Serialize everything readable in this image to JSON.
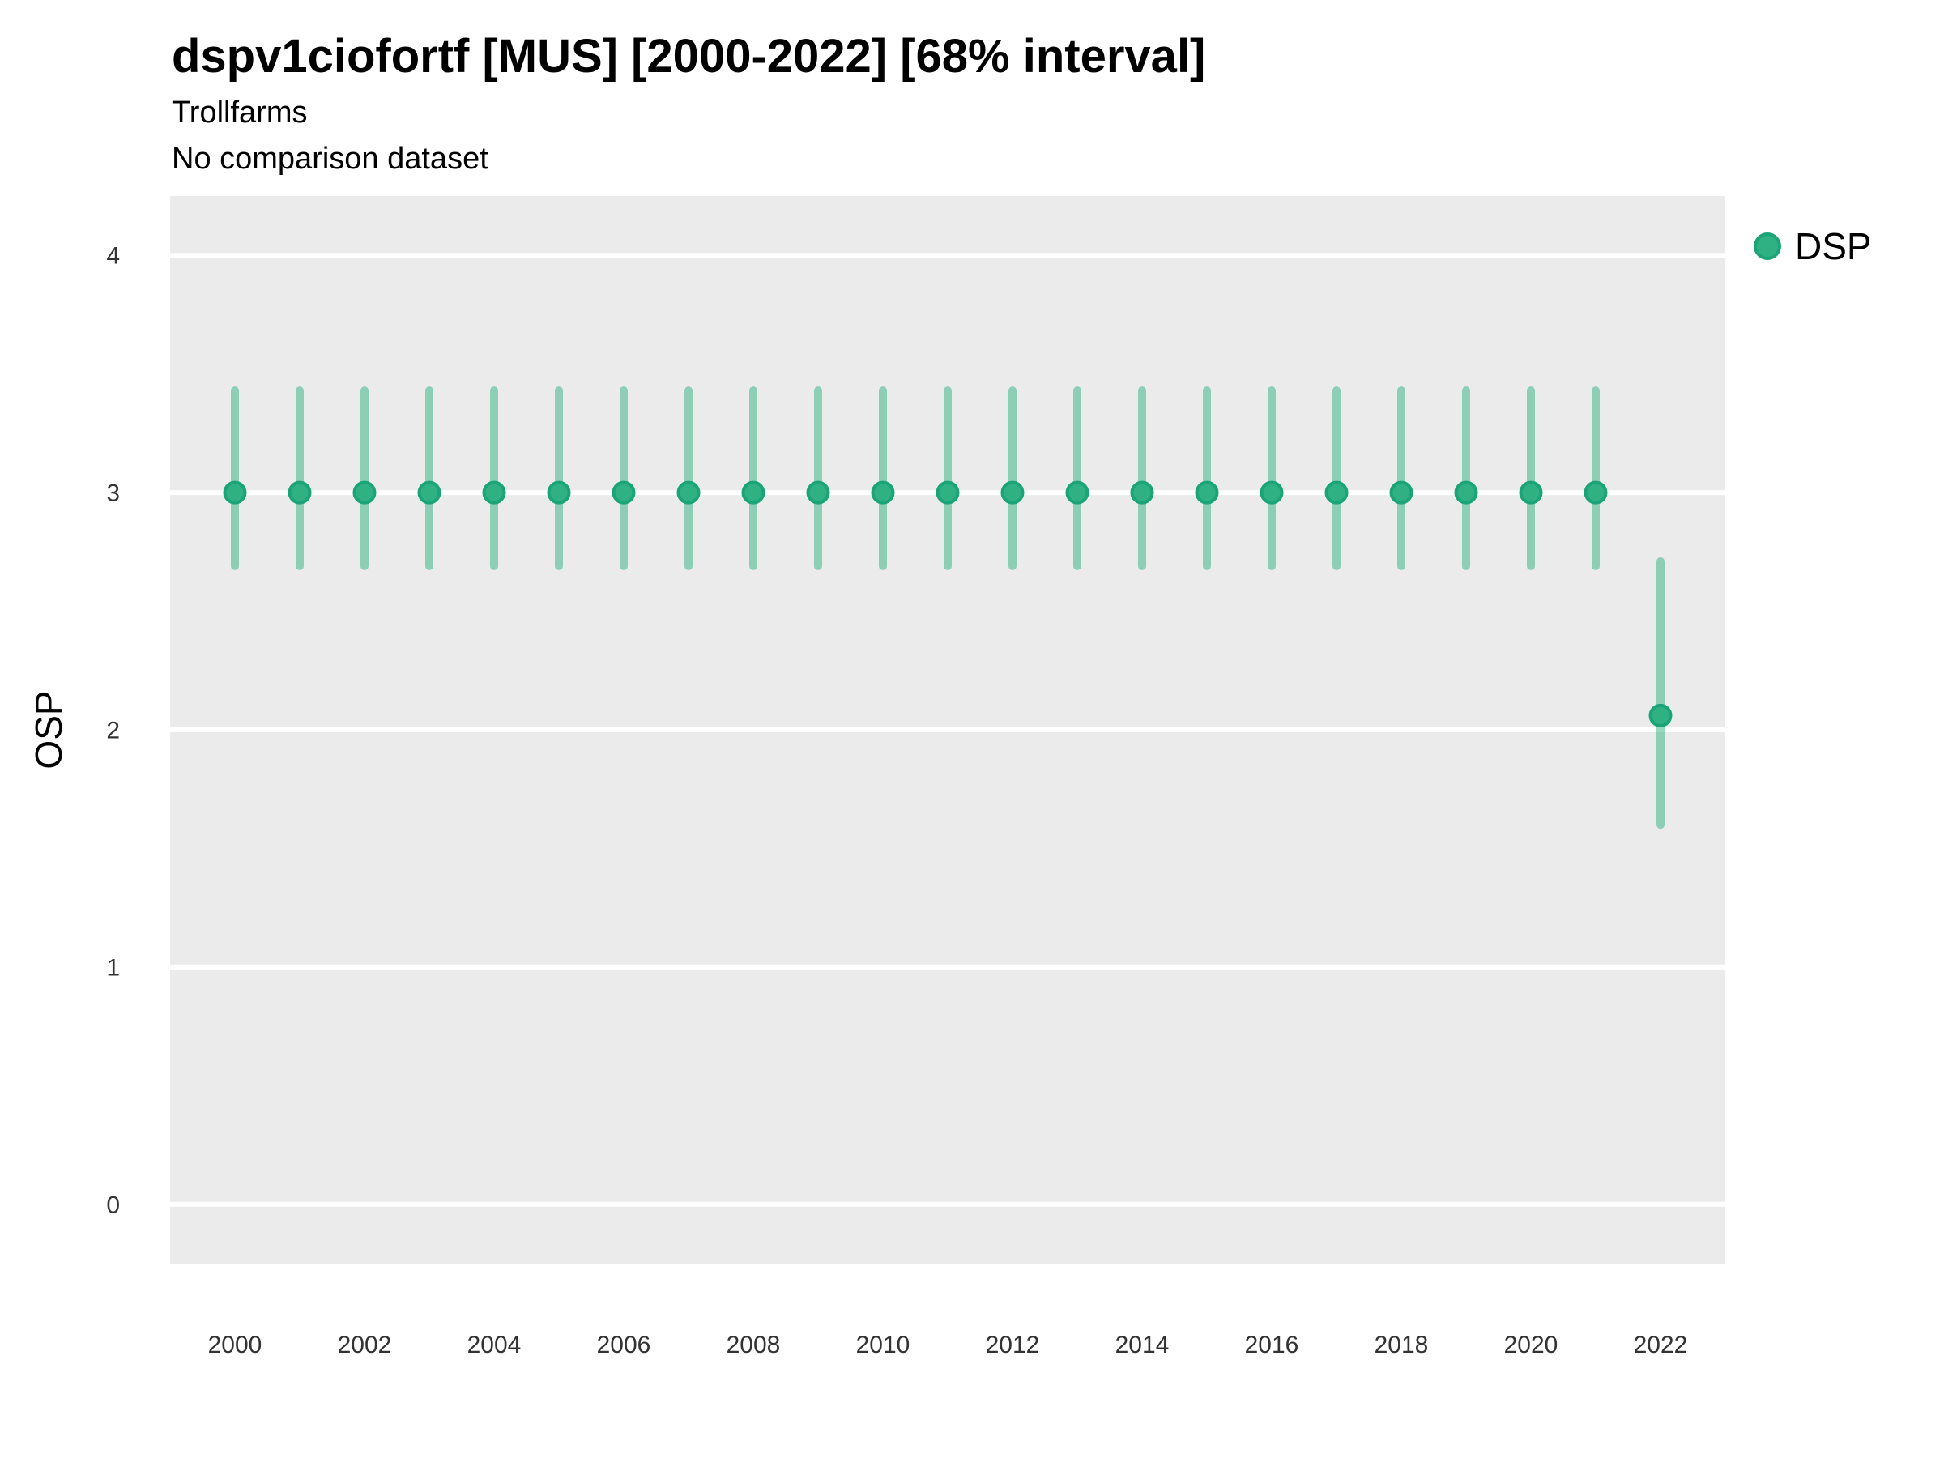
{
  "header": {
    "title": "dspv1ciofortf [MUS] [2000-2022] [68% interval]",
    "subtitle": "Trollfarms",
    "note": "No comparison dataset"
  },
  "legend": {
    "items": [
      {
        "label": "DSP"
      }
    ]
  },
  "axes": {
    "y_title": "OSP"
  },
  "colors": {
    "panel_bg": "#EBEBEB",
    "gridline": "#FFFFFF",
    "point_fill": "#2FB184",
    "point_stroke": "#1BA477",
    "errorbar": "rgba(47,177,132,0.5)",
    "tick_label": "#333333",
    "text": "#000000"
  },
  "chart_data": {
    "type": "scatter",
    "title": "dspv1ciofortf [MUS] [2000-2022] [68% interval]",
    "subtitle": "Trollfarms",
    "caption": "No comparison dataset",
    "xlabel": "",
    "ylabel": "OSP",
    "legend_position": "right",
    "interval_label": "68% interval",
    "grid": "major-y-only",
    "xlim": [
      1999,
      2023
    ],
    "ylim": [
      -0.25,
      4.25
    ],
    "x_ticks": [
      2000,
      2002,
      2004,
      2006,
      2008,
      2010,
      2012,
      2014,
      2016,
      2018,
      2020,
      2022
    ],
    "y_ticks": [
      0,
      1,
      2,
      3,
      4
    ],
    "series": [
      {
        "name": "DSP",
        "points": [
          {
            "x": 2000,
            "y": 3.0,
            "lo": 2.69,
            "hi": 3.43
          },
          {
            "x": 2001,
            "y": 3.0,
            "lo": 2.69,
            "hi": 3.43
          },
          {
            "x": 2002,
            "y": 3.0,
            "lo": 2.69,
            "hi": 3.43
          },
          {
            "x": 2003,
            "y": 3.0,
            "lo": 2.69,
            "hi": 3.43
          },
          {
            "x": 2004,
            "y": 3.0,
            "lo": 2.69,
            "hi": 3.43
          },
          {
            "x": 2005,
            "y": 3.0,
            "lo": 2.69,
            "hi": 3.43
          },
          {
            "x": 2006,
            "y": 3.0,
            "lo": 2.69,
            "hi": 3.43
          },
          {
            "x": 2007,
            "y": 3.0,
            "lo": 2.69,
            "hi": 3.43
          },
          {
            "x": 2008,
            "y": 3.0,
            "lo": 2.69,
            "hi": 3.43
          },
          {
            "x": 2009,
            "y": 3.0,
            "lo": 2.69,
            "hi": 3.43
          },
          {
            "x": 2010,
            "y": 3.0,
            "lo": 2.69,
            "hi": 3.43
          },
          {
            "x": 2011,
            "y": 3.0,
            "lo": 2.69,
            "hi": 3.43
          },
          {
            "x": 2012,
            "y": 3.0,
            "lo": 2.69,
            "hi": 3.43
          },
          {
            "x": 2013,
            "y": 3.0,
            "lo": 2.69,
            "hi": 3.43
          },
          {
            "x": 2014,
            "y": 3.0,
            "lo": 2.69,
            "hi": 3.43
          },
          {
            "x": 2015,
            "y": 3.0,
            "lo": 2.69,
            "hi": 3.43
          },
          {
            "x": 2016,
            "y": 3.0,
            "lo": 2.69,
            "hi": 3.43
          },
          {
            "x": 2017,
            "y": 3.0,
            "lo": 2.69,
            "hi": 3.43
          },
          {
            "x": 2018,
            "y": 3.0,
            "lo": 2.69,
            "hi": 3.43
          },
          {
            "x": 2019,
            "y": 3.0,
            "lo": 2.69,
            "hi": 3.43
          },
          {
            "x": 2020,
            "y": 3.0,
            "lo": 2.69,
            "hi": 3.43
          },
          {
            "x": 2021,
            "y": 3.0,
            "lo": 2.69,
            "hi": 3.43
          },
          {
            "x": 2022,
            "y": 2.06,
            "lo": 1.6,
            "hi": 2.71
          }
        ]
      }
    ]
  }
}
